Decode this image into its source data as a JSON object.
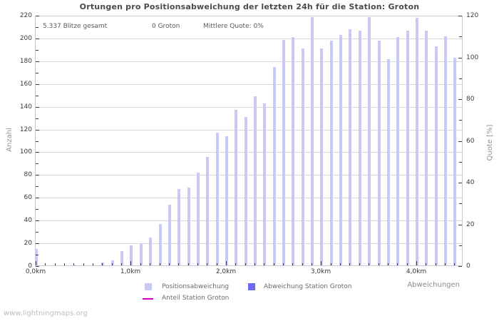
{
  "page": {
    "footer": "www.lightningmaps.org"
  },
  "info": {
    "total": "5.337 Blitze gesamt",
    "station": "0 Groton",
    "quote": "Mittlere Quote: 0%"
  },
  "chart_data": {
    "type": "bar",
    "title": "Ortungen pro Positionsabweichung der letzten 24h für die Station: Groton",
    "xlabel": "Abweichungen",
    "ylabel_left": "Anzahl",
    "ylabel_right": "Quote [%]",
    "x_unit": "km",
    "x_km": [
      0.0,
      0.1,
      0.2,
      0.3,
      0.4,
      0.5,
      0.6,
      0.7,
      0.8,
      0.9,
      1.0,
      1.1,
      1.2,
      1.3,
      1.4,
      1.5,
      1.6,
      1.7,
      1.8,
      1.9,
      2.0,
      2.1,
      2.2,
      2.3,
      2.4,
      2.5,
      2.6,
      2.7,
      2.8,
      2.9,
      3.0,
      3.1,
      3.2,
      3.3,
      3.4,
      3.5,
      3.6,
      3.7,
      3.8,
      3.9,
      4.0,
      4.1,
      4.2,
      4.3,
      4.4
    ],
    "series": [
      {
        "name": "Positionsabweichung",
        "axis": "left",
        "style": "bar",
        "color": "#c9caf3",
        "values": [
          15,
          0,
          0,
          0,
          1,
          0,
          0,
          3,
          5,
          13,
          18,
          20,
          25,
          37,
          54,
          68,
          69,
          82,
          96,
          117,
          114,
          137,
          131,
          149,
          143,
          175,
          199,
          201,
          191,
          219,
          191,
          198,
          203,
          208,
          207,
          219,
          198,
          182,
          201,
          207,
          218,
          207,
          193,
          202,
          183
        ]
      },
      {
        "name": "Abweichung Station Groton",
        "axis": "left",
        "style": "bar",
        "color": "#6b6bf0",
        "values": [
          0,
          0,
          0,
          0,
          0,
          0,
          0,
          0,
          0,
          0,
          0,
          0,
          0,
          0,
          0,
          0,
          0,
          0,
          0,
          0,
          0,
          0,
          0,
          0,
          0,
          0,
          0,
          0,
          0,
          0,
          0,
          0,
          0,
          0,
          0,
          0,
          0,
          0,
          0,
          0,
          0,
          0,
          0,
          0,
          0
        ]
      },
      {
        "name": "Anteil Station Groton",
        "axis": "right",
        "style": "line",
        "color": "#cc00cc",
        "values": [
          0,
          0,
          0,
          0,
          0,
          0,
          0,
          0,
          0,
          0,
          0,
          0,
          0,
          0,
          0,
          0,
          0,
          0,
          0,
          0,
          0,
          0,
          0,
          0,
          0,
          0,
          0,
          0,
          0,
          0,
          0,
          0,
          0,
          0,
          0,
          0,
          0,
          0,
          0,
          0,
          0,
          0,
          0,
          0,
          0
        ]
      }
    ],
    "ylim_left": [
      0,
      220
    ],
    "ylim_right": [
      0,
      120
    ],
    "y_ticks_left": [
      0,
      20,
      40,
      60,
      80,
      100,
      120,
      140,
      160,
      180,
      200,
      220
    ],
    "y_ticks_right": [
      0,
      20,
      40,
      60,
      80,
      100,
      120
    ],
    "x_major_ticks_km": [
      0,
      1,
      2,
      3,
      4
    ],
    "x_tick_labels": [
      "0,0km",
      "1,0km",
      "2,0km",
      "3,0km",
      "4,0km"
    ],
    "grid": "horizontal",
    "legend_position": "bottom"
  }
}
